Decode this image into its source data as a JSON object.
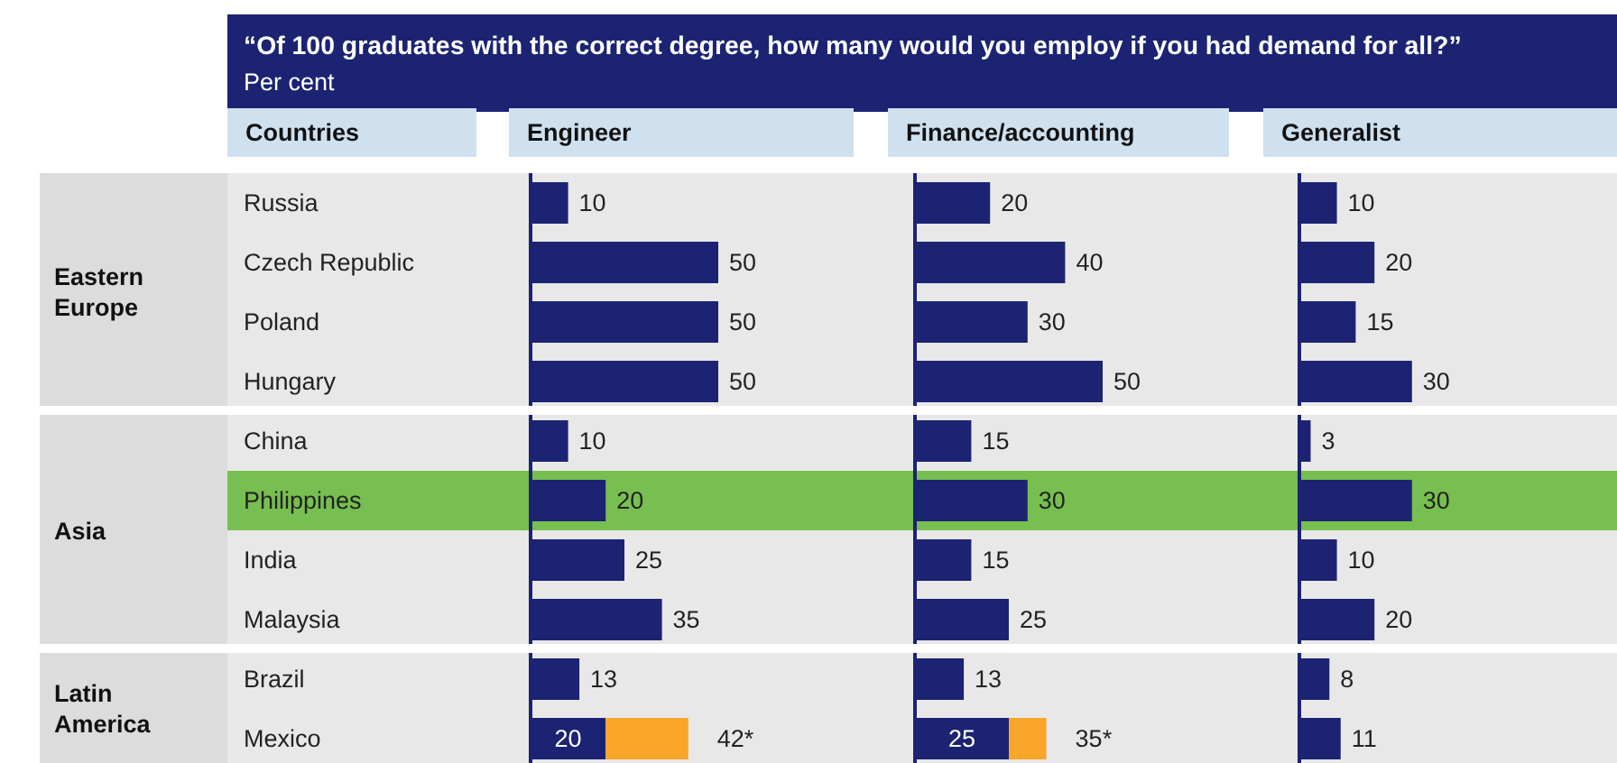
{
  "chart_data": [
    {
      "type": "bar",
      "orientation": "horizontal",
      "stacked": true,
      "title": "“Of 100 graduates with the correct degree, how many would you employ if you had demand for all?”",
      "subtitle": "Per cent",
      "ylabel": "Countries",
      "xlabel": "Engineer",
      "tick_labels": "y",
      "categories": [
        "Russia",
        "Czech Republic",
        "Poland",
        "Hungary",
        "China",
        "Philippines",
        "India",
        "Malaysia",
        "Brazil",
        "Mexico"
      ],
      "annotations": [
        "Eastern Europe",
        "Asia",
        "Latin America"
      ],
      "bands": [
        {
          "axis": "y",
          "from": "Philippines",
          "to": "Philippines",
          "color": "#77bf50"
        }
      ],
      "series": [
        {
          "color": "#1b2372",
          "values": [
            10,
            50,
            50,
            50,
            10,
            20,
            25,
            35,
            13,
            20
          ],
          "value_labels": [
            "10",
            "50",
            "50",
            "50",
            "10",
            "20",
            "25",
            "35",
            "13",
            "20"
          ]
        },
        {
          "color": "#f9a62b",
          "values": [
            null,
            null,
            null,
            null,
            null,
            null,
            null,
            null,
            null,
            22
          ]
        }
      ],
      "totals": [
        null,
        null,
        null,
        null,
        null,
        null,
        null,
        null,
        null,
        "42*"
      ]
    },
    {
      "type": "bar",
      "orientation": "horizontal",
      "stacked": true,
      "xlabel": "Finance/accounting",
      "tick_labels": false,
      "categories": [
        "Russia",
        "Czech Republic",
        "Poland",
        "Hungary",
        "China",
        "Philippines",
        "India",
        "Malaysia",
        "Brazil",
        "Mexico"
      ],
      "bands": [
        {
          "axis": "y",
          "from": "Philippines",
          "to": "Philippines",
          "color": "#77bf50"
        }
      ],
      "series": [
        {
          "color": "#1b2372",
          "values": [
            20,
            40,
            30,
            50,
            15,
            30,
            15,
            25,
            13,
            25
          ],
          "value_labels": [
            "20",
            "40",
            "30",
            "50",
            "15",
            "30",
            "15",
            "25",
            "13",
            "25"
          ]
        },
        {
          "color": "#f9a62b",
          "values": [
            null,
            null,
            null,
            null,
            null,
            null,
            null,
            null,
            null,
            10
          ]
        }
      ],
      "totals": [
        null,
        null,
        null,
        null,
        null,
        null,
        null,
        null,
        null,
        "35*"
      ]
    },
    {
      "type": "bar",
      "orientation": "horizontal",
      "xlabel": "Generalist",
      "tick_labels": false,
      "categories": [
        "Russia",
        "Czech Republic",
        "Poland",
        "Hungary",
        "China",
        "Philippines",
        "India",
        "Malaysia",
        "Brazil",
        "Mexico"
      ],
      "bands": [
        {
          "axis": "y",
          "from": "Philippines",
          "to": "Philippines",
          "color": "#77bf50"
        }
      ],
      "series": [
        {
          "color": "#1b2372",
          "values": [
            10,
            20,
            15,
            30,
            3,
            30,
            10,
            20,
            8,
            11
          ],
          "value_labels": [
            "10",
            "20",
            "15",
            "30",
            "3",
            "30",
            "10",
            "20",
            "8",
            "11"
          ]
        }
      ]
    }
  ]
}
